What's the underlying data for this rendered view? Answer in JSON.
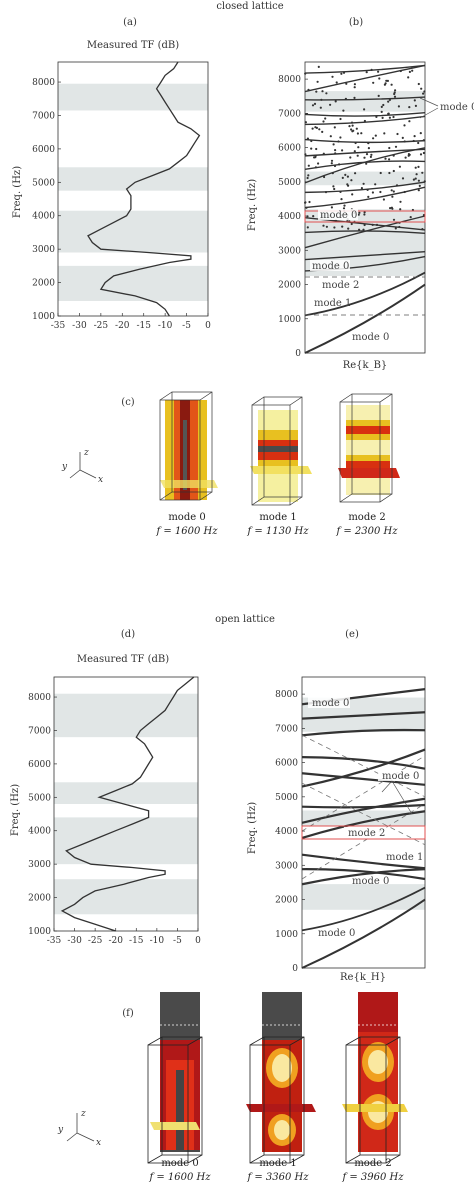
{
  "headers": {
    "closed": "closed lattice",
    "open": "open lattice"
  },
  "panels": {
    "a": "(a)",
    "b": "(b)",
    "c": "(c)",
    "d": "(d)",
    "e": "(e)",
    "f": "(f)"
  },
  "axes": {
    "tf_title": "Measured TF (dB)",
    "freq_label": "Freq. (Hz)",
    "re_kb": "Re{k_B}",
    "re_kh": "Re{k_H}",
    "tf_xticks": [
      "-35",
      "-30",
      "-25",
      "-20",
      "-15",
      "-10",
      "-5",
      "0"
    ],
    "tf_yticks": [
      "1000",
      "2000",
      "3000",
      "4000",
      "5000",
      "6000",
      "7000",
      "8000"
    ],
    "disp_yticks": [
      "0",
      "1000",
      "2000",
      "3000",
      "4000",
      "5000",
      "6000",
      "7000",
      "8000"
    ]
  },
  "mode_labels": {
    "b": [
      "mode 0",
      "mode 0",
      "mode 0",
      "mode 2",
      "mode 1",
      "mode 0"
    ],
    "e": [
      "mode 0",
      "mode 0",
      "mode 2",
      "mode 1",
      "mode 0",
      "mode 0"
    ]
  },
  "axis_glyphs": {
    "z": "z",
    "y": "y",
    "x": "x"
  },
  "captions": {
    "c": [
      {
        "mode": "mode 0",
        "freq": "f = 1600 Hz"
      },
      {
        "mode": "mode 1",
        "freq": "f = 1130 Hz"
      },
      {
        "mode": "mode 2",
        "freq": "f = 2300 Hz"
      }
    ],
    "f": [
      {
        "mode": "mode 0",
        "freq": "f = 1600 Hz"
      },
      {
        "mode": "mode 1",
        "freq": "f = 3360 Hz"
      },
      {
        "mode": "mode 2",
        "freq": "f = 3960 Hz"
      }
    ]
  },
  "colors": {
    "band": "#e1e6e6",
    "curve": "#333333",
    "accent": "#e05050"
  },
  "chart_data": [
    {
      "id": "a",
      "type": "line",
      "title": "Measured TF (dB)",
      "ylabel": "Freq. (Hz)",
      "xlim": [
        -35,
        0
      ],
      "ylim": [
        1000,
        8600
      ],
      "stop_bands_hz": [
        [
          1450,
          2500
        ],
        [
          2900,
          4150
        ],
        [
          4750,
          5450
        ],
        [
          7150,
          7950
        ]
      ],
      "series": [
        {
          "y_hz": [
            1000,
            1200,
            1400,
            1600,
            1800,
            2000,
            2200,
            2400,
            2600,
            2700,
            2800,
            2900,
            3000,
            3200,
            3400,
            3600,
            3800,
            4000,
            4200,
            4400,
            4600,
            4800,
            5000,
            5200,
            5400,
            5600,
            5800,
            6000,
            6200,
            6400,
            6600,
            6800,
            7000,
            7200,
            7400,
            7600,
            7800,
            8000,
            8200,
            8400,
            8600
          ],
          "x_db": [
            -9,
            -10,
            -12,
            -17,
            -25,
            -24,
            -22,
            -16,
            -9,
            -4,
            -4,
            -14,
            -25,
            -27,
            -28,
            -25,
            -22,
            -19,
            -18,
            -18,
            -18,
            -19,
            -17,
            -13,
            -9,
            -7,
            -5,
            -4,
            -3,
            -2,
            -4,
            -7,
            -8,
            -9,
            -10,
            -11,
            -12,
            -11,
            -10,
            -8,
            -7
          ]
        }
      ]
    },
    {
      "id": "b",
      "type": "scatter",
      "xlabel": "Re{k_B}",
      "ylabel": "Freq. (Hz)",
      "ylim": [
        0,
        8500
      ],
      "stop_bands_hz": [
        [
          2250,
          4200
        ],
        [
          4900,
          5300
        ],
        [
          7050,
          7650
        ]
      ],
      "highlight_band_hz": [
        3850,
        4150
      ],
      "dashed_lines_hz": [
        1150,
        2250
      ]
    },
    {
      "id": "d",
      "type": "line",
      "title": "Measured TF (dB)",
      "ylabel": "Freq. (Hz)",
      "xlim": [
        -35,
        0
      ],
      "ylim": [
        1000,
        8600
      ],
      "stop_bands_hz": [
        [
          1500,
          2550
        ],
        [
          3000,
          4400
        ],
        [
          4800,
          5450
        ],
        [
          6800,
          8100
        ]
      ],
      "series": [
        {
          "y_hz": [
            1000,
            1200,
            1400,
            1600,
            1800,
            2000,
            2200,
            2400,
            2600,
            2700,
            2800,
            2900,
            3000,
            3200,
            3400,
            3600,
            3800,
            4000,
            4200,
            4400,
            4600,
            4800,
            5000,
            5200,
            5400,
            5600,
            5800,
            6000,
            6200,
            6400,
            6600,
            6800,
            7000,
            7200,
            7400,
            7600,
            7800,
            8000,
            8200,
            8400,
            8600
          ],
          "x_db": [
            -20,
            -25,
            -30,
            -33,
            -30,
            -28,
            -25,
            -18,
            -12,
            -8,
            -8,
            -16,
            -26,
            -30,
            -32,
            -28,
            -24,
            -20,
            -16,
            -12,
            -12,
            -18,
            -24,
            -20,
            -16,
            -14,
            -13,
            -12,
            -11,
            -12,
            -13,
            -15,
            -14,
            -12,
            -10,
            -8,
            -7,
            -6,
            -5,
            -3,
            -1
          ]
        }
      ]
    },
    {
      "id": "e",
      "type": "scatter",
      "xlabel": "Re{k_H}",
      "ylabel": "Freq. (Hz)",
      "ylim": [
        0,
        8500
      ],
      "stop_bands_hz": [
        [
          1700,
          2450
        ],
        [
          4150,
          4600
        ],
        [
          6900,
          7900
        ]
      ],
      "highlight_band_hz": [
        3750,
        4150
      ]
    }
  ]
}
